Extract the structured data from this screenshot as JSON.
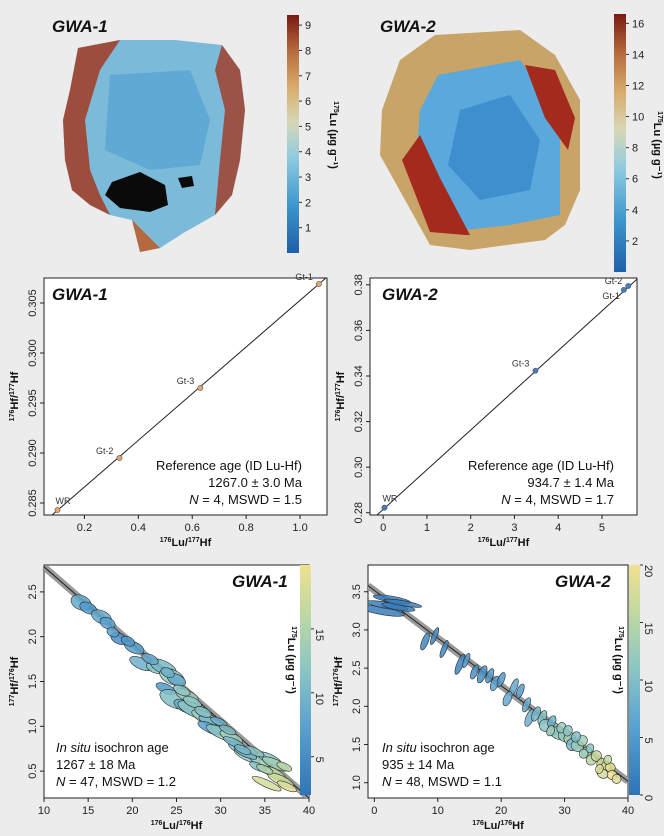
{
  "colors": {
    "scale": [
      "#1f5fa8",
      "#2e86c1",
      "#4ba8d6",
      "#86c6dd",
      "#c8d2b0",
      "#d8b070",
      "#c88a4a",
      "#9e3a22",
      "#7a1a12"
    ],
    "lut_ellipse": [
      "#2f74b5",
      "#5aa2d0",
      "#8cc6c4",
      "#c2d9a0",
      "#f0e090"
    ],
    "point_fill": "#e8a46a",
    "point_fill2": "#3f7fbf"
  },
  "colorbars": {
    "top_left": {
      "label": "Lu (µg g⁻¹)",
      "label_sup": "175",
      "ticks": [
        "1",
        "2",
        "3",
        "4",
        "5",
        "6",
        "7",
        "8",
        "9"
      ]
    },
    "top_right": {
      "label": "Lu (µg g⁻¹)",
      "label_sup": "175",
      "ticks": [
        "2",
        "4",
        "6",
        "8",
        "10",
        "12",
        "14",
        "16"
      ]
    },
    "bot_left": {
      "label": "Lu (µg g⁻¹)",
      "label_sup": "175",
      "ticks": [
        "5",
        "10",
        "15"
      ]
    },
    "bot_right": {
      "label": "Lu (µg g⁻¹)",
      "label_sup": "175",
      "ticks": [
        "0",
        "5",
        "10",
        "15",
        "20"
      ]
    }
  },
  "maps": {
    "left_title": "GWA-1",
    "right_title": "GWA-2"
  },
  "chart_data": [
    {
      "panel": "middle-left",
      "type": "scatter",
      "title": "GWA-1",
      "xlabel": "176Lu/177Hf",
      "ylabel": "176Hf/177Hf",
      "xlim": [
        0.05,
        1.1
      ],
      "ylim": [
        0.2838,
        0.3075
      ],
      "xticks": [
        "0.2",
        "0.4",
        "0.6",
        "0.8",
        "1.0"
      ],
      "yticks": [
        "0.285",
        "0.290",
        "0.295",
        "0.300",
        "0.305"
      ],
      "points": [
        {
          "label": "WR",
          "x": 0.1,
          "y": 0.2843
        },
        {
          "label": "Gt-2",
          "x": 0.33,
          "y": 0.2895
        },
        {
          "label": "Gt-3",
          "x": 0.63,
          "y": 0.2965
        },
        {
          "label": "Gt-1",
          "x": 1.07,
          "y": 0.3069
        }
      ],
      "line": [
        [
          0.05,
          0.2831
        ],
        [
          1.1,
          0.3076
        ]
      ],
      "annotation": {
        "line1": "Reference age (ID Lu-Hf)",
        "line2": "1267.0 ± 3.0 Ma",
        "line3_n": "N",
        "line3": " = 4, MSWD = 1.5"
      }
    },
    {
      "panel": "middle-right",
      "type": "scatter",
      "title": "GWA-2",
      "xlabel": "176Lu/177Hf",
      "ylabel": "176Hf/177Hf",
      "xlim": [
        -0.3,
        5.8
      ],
      "ylim": [
        0.279,
        0.383
      ],
      "xticks": [
        "0",
        "1",
        "2",
        "3",
        "4",
        "5"
      ],
      "yticks": [
        "0.28",
        "0.30",
        "0.32",
        "0.34",
        "0.36",
        "0.38"
      ],
      "points": [
        {
          "label": "WR",
          "x": 0.03,
          "y": 0.2822
        },
        {
          "label": "Gt-3",
          "x": 3.48,
          "y": 0.3423
        },
        {
          "label": "Gt-1",
          "x": 5.5,
          "y": 0.3778
        },
        {
          "label": "Gt-2",
          "x": 5.6,
          "y": 0.3795
        }
      ],
      "line": [
        [
          -0.3,
          0.2762
        ],
        [
          5.8,
          0.3825
        ]
      ],
      "annotation": {
        "line1": "Reference age (ID Lu-Hf)",
        "line2": "934.7 ± 1.4 Ma",
        "line3_n": "N",
        "line3": " = 4, MSWD = 1.7"
      }
    },
    {
      "panel": "bottom-left",
      "type": "scatter",
      "title": "GWA-1",
      "xlabel": "176Lu/176Hf",
      "ylabel": "177Hf/176Hf",
      "xlim": [
        10,
        40
      ],
      "ylim": [
        0.2,
        2.8
      ],
      "xticks": [
        "10",
        "15",
        "20",
        "25",
        "30",
        "35",
        "40"
      ],
      "yticks": [
        "0.5",
        "1.0",
        "1.5",
        "2.0",
        "2.5"
      ],
      "line": [
        [
          10,
          2.78
        ],
        [
          40,
          0.2
        ]
      ],
      "ellipses": [
        [
          14.2,
          2.38,
          1.2,
          0.08,
          0.3
        ],
        [
          15.0,
          2.32,
          1.0,
          0.06,
          0.2
        ],
        [
          16.5,
          2.22,
          1.2,
          0.07,
          0.3
        ],
        [
          17.2,
          2.15,
          0.9,
          0.06,
          0.25
        ],
        [
          18.5,
          1.98,
          1.0,
          0.06,
          0.15
        ],
        [
          20.2,
          1.88,
          1.2,
          0.06,
          0.25
        ],
        [
          21.0,
          1.7,
          1.4,
          0.06,
          0.35
        ],
        [
          22.5,
          1.65,
          1.0,
          0.05,
          0.5
        ],
        [
          23.5,
          1.66,
          1.6,
          0.07,
          0.4
        ],
        [
          24.5,
          1.55,
          1.5,
          0.08,
          0.55
        ],
        [
          25.0,
          1.52,
          1.1,
          0.06,
          0.3
        ],
        [
          23.8,
          1.42,
          1.2,
          0.05,
          0.2
        ],
        [
          24.8,
          1.3,
          1.8,
          0.09,
          0.45
        ],
        [
          26.2,
          1.34,
          1.4,
          0.06,
          0.6
        ],
        [
          26.0,
          1.22,
          1.4,
          0.06,
          0.3
        ],
        [
          27.0,
          1.18,
          2.0,
          0.07,
          0.5
        ],
        [
          28.2,
          1.1,
          1.6,
          0.06,
          0.55
        ],
        [
          29.0,
          1.04,
          1.6,
          0.05,
          0.4
        ],
        [
          28.8,
          0.98,
          1.5,
          0.05,
          0.25
        ],
        [
          30.0,
          0.95,
          1.2,
          0.05,
          0.3
        ],
        [
          30.2,
          0.92,
          2.0,
          0.06,
          0.5
        ],
        [
          31.2,
          0.88,
          1.4,
          0.05,
          0.6
        ],
        [
          32.0,
          0.76,
          1.2,
          0.05,
          0.45
        ],
        [
          33.0,
          0.67,
          1.6,
          0.05,
          0.55
        ],
        [
          34.5,
          0.62,
          1.3,
          0.06,
          0.6
        ],
        [
          35.5,
          0.64,
          1.5,
          0.05,
          0.5
        ],
        [
          36.2,
          0.58,
          1.6,
          0.05,
          0.6
        ],
        [
          36.0,
          0.48,
          1.4,
          0.05,
          0.75
        ],
        [
          36.8,
          0.4,
          1.6,
          0.05,
          0.8
        ],
        [
          35.2,
          0.36,
          1.8,
          0.04,
          0.85
        ],
        [
          37.5,
          0.33,
          1.2,
          0.04,
          0.9
        ],
        [
          34.2,
          0.55,
          1.0,
          0.04,
          0.45
        ],
        [
          37.2,
          0.55,
          0.9,
          0.04,
          0.7
        ],
        [
          32.8,
          0.7,
          1.4,
          0.04,
          0.35
        ],
        [
          33.8,
          0.72,
          1.2,
          0.04,
          0.5
        ],
        [
          31.5,
          0.82,
          1.3,
          0.04,
          0.4
        ],
        [
          26.8,
          1.27,
          1.1,
          0.05,
          0.5
        ],
        [
          22.0,
          1.75,
          1.0,
          0.05,
          0.3
        ],
        [
          19.5,
          1.95,
          0.8,
          0.05,
          0.2
        ],
        [
          17.8,
          2.05,
          0.7,
          0.05,
          0.25
        ],
        [
          28.0,
          1.16,
          1.0,
          0.05,
          0.45
        ],
        [
          29.8,
          1.05,
          1.0,
          0.04,
          0.35
        ],
        [
          25.6,
          1.4,
          1.0,
          0.05,
          0.5
        ],
        [
          24.0,
          1.6,
          0.8,
          0.05,
          0.35
        ],
        [
          30.8,
          0.96,
          1.0,
          0.04,
          0.45
        ],
        [
          35.0,
          0.52,
          1.0,
          0.04,
          0.65
        ],
        [
          32.5,
          0.74,
          1.0,
          0.04,
          0.4
        ]
      ],
      "annotation": {
        "line1_i": "In situ",
        "line1": " isochron age",
        "line2": "1267 ± 18 Ma",
        "line3_n": "N",
        "line3": " = 47, MSWD = 1.2"
      }
    },
    {
      "panel": "bottom-right",
      "type": "scatter",
      "title": "GWA-2",
      "xlabel": "176Lu/176Hf",
      "ylabel": "177Hf/176Hf",
      "xlim": [
        -1,
        40
      ],
      "ylim": [
        0.8,
        3.85
      ],
      "xticks": [
        "0",
        "10",
        "20",
        "30",
        "40"
      ],
      "yticks": [
        "1.0",
        "1.5",
        "2.0",
        "2.5",
        "3.0",
        "3.5"
      ],
      "line": [
        [
          -1,
          3.58
        ],
        [
          40,
          1.02
        ]
      ],
      "ellipses": [
        [
          1.2,
          3.25,
          0.6,
          0.3,
          0.05
        ],
        [
          2.0,
          3.32,
          0.5,
          0.28,
          0.05
        ],
        [
          2.8,
          3.4,
          0.5,
          0.25,
          0.05
        ],
        [
          3.8,
          3.3,
          0.5,
          0.22,
          0.05
        ],
        [
          4.5,
          3.35,
          0.4,
          0.25,
          0.05
        ],
        [
          8.0,
          2.85,
          0.5,
          0.12,
          0.1
        ],
        [
          9.5,
          2.92,
          0.4,
          0.12,
          0.1
        ],
        [
          13.5,
          2.55,
          0.5,
          0.14,
          0.1
        ],
        [
          14.5,
          2.6,
          0.4,
          0.1,
          0.2
        ],
        [
          17.0,
          2.42,
          0.6,
          0.12,
          0.15
        ],
        [
          18.2,
          2.4,
          0.5,
          0.1,
          0.2
        ],
        [
          19.0,
          2.3,
          0.6,
          0.1,
          0.25
        ],
        [
          22.0,
          2.25,
          0.5,
          0.12,
          0.3
        ],
        [
          23.0,
          2.2,
          0.5,
          0.1,
          0.2
        ],
        [
          21.0,
          2.1,
          0.6,
          0.1,
          0.3
        ],
        [
          24.5,
          1.85,
          0.6,
          0.12,
          0.35
        ],
        [
          25.5,
          1.9,
          0.6,
          0.1,
          0.4
        ],
        [
          26.5,
          1.85,
          0.6,
          0.1,
          0.45
        ],
        [
          27.0,
          1.75,
          1.0,
          0.08,
          0.5
        ],
        [
          28.2,
          1.7,
          0.8,
          0.09,
          0.55
        ],
        [
          29.0,
          1.65,
          1.2,
          0.08,
          0.5
        ],
        [
          30.0,
          1.62,
          1.0,
          0.08,
          0.55
        ],
        [
          30.8,
          1.58,
          0.9,
          0.08,
          0.6
        ],
        [
          31.2,
          1.5,
          0.9,
          0.08,
          0.4
        ],
        [
          32.0,
          1.48,
          1.0,
          0.07,
          0.55
        ],
        [
          32.8,
          1.55,
          0.8,
          0.07,
          0.6
        ],
        [
          33.5,
          1.4,
          0.8,
          0.07,
          0.65
        ],
        [
          34.2,
          1.3,
          0.8,
          0.07,
          0.7
        ],
        [
          35.0,
          1.35,
          0.8,
          0.07,
          0.8
        ],
        [
          35.8,
          1.25,
          0.7,
          0.07,
          0.85
        ],
        [
          36.5,
          1.22,
          0.7,
          0.06,
          0.9
        ],
        [
          37.2,
          1.2,
          0.8,
          0.06,
          0.95
        ],
        [
          36.0,
          1.12,
          0.9,
          0.06,
          0.85
        ],
        [
          37.5,
          1.1,
          0.8,
          0.06,
          1.0
        ],
        [
          38.2,
          1.05,
          0.7,
          0.06,
          0.9
        ],
        [
          34.0,
          1.45,
          0.6,
          0.06,
          0.5
        ],
        [
          31.8,
          1.6,
          0.7,
          0.07,
          0.45
        ],
        [
          29.5,
          1.72,
          0.7,
          0.07,
          0.55
        ],
        [
          28.0,
          1.8,
          0.6,
          0.08,
          0.35
        ],
        [
          24.0,
          2.02,
          0.5,
          0.1,
          0.3
        ],
        [
          20.0,
          2.35,
          0.5,
          0.1,
          0.2
        ],
        [
          15.8,
          2.45,
          0.5,
          0.1,
          0.15
        ],
        [
          11.0,
          2.75,
          0.4,
          0.12,
          0.1
        ],
        [
          36.8,
          1.3,
          0.6,
          0.06,
          0.75
        ],
        [
          33.0,
          1.38,
          0.7,
          0.06,
          0.6
        ],
        [
          30.5,
          1.68,
          0.7,
          0.07,
          0.5
        ],
        [
          27.8,
          1.68,
          0.6,
          0.07,
          0.6
        ],
        [
          35.5,
          1.18,
          0.6,
          0.06,
          0.9
        ]
      ],
      "annotation": {
        "line1_i": "In situ",
        "line1": " isochron age",
        "line2": "935 ± 14 Ma",
        "line3_n": "N",
        "line3": " = 48, MSWD = 1.1"
      }
    }
  ]
}
